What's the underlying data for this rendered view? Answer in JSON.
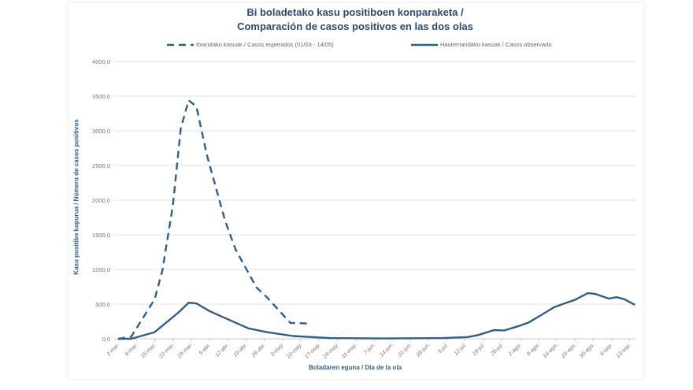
{
  "chart_data": {
    "type": "line",
    "title": "Bi boladetako kasu positiboen konparaketa /",
    "subtitle": "Comparación de casos positivos en las dos olas",
    "xlabel": "Boladaren eguna / Dia de la ola",
    "ylabel": "Kasu positibo kopurua / Número de casos positivos",
    "ylim": [
      0,
      4000
    ],
    "y_ticks": [
      "0,0",
      "500,0",
      "1000,0",
      "1500,0",
      "2000,0",
      "2500,0",
      "3000,0",
      "3500,0",
      "4000,0"
    ],
    "x_ticks": [
      "1-mar.",
      "8-mar.",
      "15-mar.",
      "22-mar.",
      "29-mar.",
      "5-abr.",
      "12-abr.",
      "19-abr.",
      "26-abr.",
      "3-may.",
      "10-may.",
      "17-may.",
      "24-may.",
      "31-may.",
      "7-jun.",
      "14-jun.",
      "21-jun.",
      "28-jun.",
      "5-jul.",
      "12-jul.",
      "19-jul.",
      "26-jul.",
      "2-ago.",
      "9-ago.",
      "16-ago.",
      "23-ago.",
      "30-ago.",
      "6-sep.",
      "13-sep."
    ],
    "grid": true,
    "legend_position": "top",
    "line_color": "#2e5f8a",
    "series": [
      {
        "name": "Itxarotako kasuak / Casos esperados (01/03 - 14/05)",
        "style": "dashed",
        "x": [
          "1-mar.",
          "6-mar.",
          "15-mar.",
          "18-mar.",
          "22-mar.",
          "25-mar.",
          "28-mar.",
          "31-mar.",
          "4-abr.",
          "11-abr.",
          "15-abr.",
          "23-abr.",
          "27-abr.",
          "6-may.",
          "13-may."
        ],
        "y": [
          0,
          30,
          570,
          990,
          1930,
          3030,
          3440,
          3350,
          2650,
          1700,
          1290,
          740,
          600,
          230,
          220
        ]
      },
      {
        "name": "Hautemandako kasuak / Casos observada",
        "style": "solid",
        "x": [
          "1-mar.",
          "6-mar.",
          "15-mar.",
          "24-mar.",
          "28-mar.",
          "31-mar.",
          "5-abr.",
          "13-abr.",
          "20-abr.",
          "27-abr.",
          "7-may.",
          "21-may.",
          "9-jun.",
          "3-jul.",
          "13-jul.",
          "17-jul.",
          "23-jul.",
          "27-jul.",
          "2-ago.",
          "5-ago.",
          "10-ago.",
          "15-ago.",
          "19-ago.",
          "23-ago.",
          "28-ago.",
          "31-ago.",
          "5-sep.",
          "8-sep.",
          "11-sep.",
          "15-sep."
        ],
        "y": [
          0,
          0,
          95,
          375,
          520,
          510,
          400,
          265,
          150,
          95,
          40,
          10,
          5,
          10,
          25,
          55,
          125,
          120,
          190,
          230,
          340,
          455,
          510,
          560,
          660,
          645,
          580,
          600,
          570,
          490
        ]
      }
    ]
  }
}
